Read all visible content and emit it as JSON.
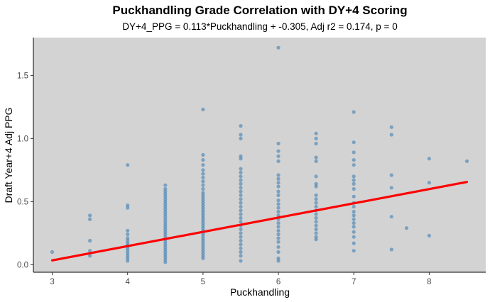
{
  "chart_data": {
    "type": "scatter",
    "title": "Puckhandling Grade Correlation with DY+4 Scoring",
    "subtitle": "DY+4_PPG = 0.113*Puckhandling + -0.305, Adj r2 = 0.174, p = 0",
    "xlabel": "Puckhandling",
    "ylabel": "Draft Year+4 Adj PPG",
    "xlim": [
      2.75,
      8.75
    ],
    "ylim": [
      -0.06,
      1.8
    ],
    "xticks": [
      "3",
      "4",
      "5",
      "6",
      "7",
      "8"
    ],
    "xtick_values": [
      3,
      4,
      5,
      6,
      7,
      8
    ],
    "yticks": [
      "0.0",
      "0.5",
      "1.0",
      "1.5"
    ],
    "ytick_values": [
      0,
      0.5,
      1.0,
      1.5
    ],
    "grid": false,
    "point_color": "#4682b4",
    "fit_color": "#ff0000",
    "panel_background": "#d3d3d3",
    "fit_line": {
      "slope": 0.113,
      "intercept": -0.305,
      "x_range": [
        3,
        8.5
      ]
    },
    "points": [
      [
        3,
        0.1
      ],
      [
        3.5,
        0.39
      ],
      [
        3.5,
        0.36
      ],
      [
        3.5,
        0.19
      ],
      [
        3.5,
        0.11
      ],
      [
        3.5,
        0.07
      ],
      [
        4,
        0.79
      ],
      [
        4,
        0.47
      ],
      [
        4,
        0.45
      ],
      [
        4,
        0.27
      ],
      [
        4,
        0.24
      ],
      [
        4,
        0.21
      ],
      [
        4,
        0.19
      ],
      [
        4,
        0.17
      ],
      [
        4,
        0.15
      ],
      [
        4,
        0.13
      ],
      [
        4,
        0.11
      ],
      [
        4,
        0.09
      ],
      [
        4,
        0.07
      ],
      [
        4,
        0.05
      ],
      [
        4,
        0.03
      ],
      [
        4.5,
        0.63
      ],
      [
        4.5,
        0.6
      ],
      [
        4.5,
        0.58
      ],
      [
        4.5,
        0.56
      ],
      [
        4.5,
        0.54
      ],
      [
        4.5,
        0.52
      ],
      [
        4.5,
        0.5
      ],
      [
        4.5,
        0.48
      ],
      [
        4.5,
        0.46
      ],
      [
        4.5,
        0.44
      ],
      [
        4.5,
        0.42
      ],
      [
        4.5,
        0.4
      ],
      [
        4.5,
        0.38
      ],
      [
        4.5,
        0.36
      ],
      [
        4.5,
        0.34
      ],
      [
        4.5,
        0.32
      ],
      [
        4.5,
        0.3
      ],
      [
        4.5,
        0.28
      ],
      [
        4.5,
        0.26
      ],
      [
        4.5,
        0.24
      ],
      [
        4.5,
        0.22
      ],
      [
        4.5,
        0.2
      ],
      [
        4.5,
        0.18
      ],
      [
        4.5,
        0.16
      ],
      [
        4.5,
        0.14
      ],
      [
        4.5,
        0.12
      ],
      [
        4.5,
        0.1
      ],
      [
        4.5,
        0.08
      ],
      [
        4.5,
        0.06
      ],
      [
        4.5,
        0.04
      ],
      [
        4.5,
        0.02
      ],
      [
        5,
        1.23
      ],
      [
        5,
        0.87
      ],
      [
        5,
        0.83
      ],
      [
        5,
        0.79
      ],
      [
        5,
        0.75
      ],
      [
        5,
        0.72
      ],
      [
        5,
        0.69
      ],
      [
        5,
        0.66
      ],
      [
        5,
        0.63
      ],
      [
        5,
        0.6
      ],
      [
        5,
        0.57
      ],
      [
        5,
        0.55
      ],
      [
        5,
        0.53
      ],
      [
        5,
        0.51
      ],
      [
        5,
        0.49
      ],
      [
        5,
        0.47
      ],
      [
        5,
        0.45
      ],
      [
        5,
        0.43
      ],
      [
        5,
        0.41
      ],
      [
        5,
        0.39
      ],
      [
        5,
        0.37
      ],
      [
        5,
        0.35
      ],
      [
        5,
        0.33
      ],
      [
        5,
        0.31
      ],
      [
        5,
        0.29
      ],
      [
        5,
        0.27
      ],
      [
        5,
        0.25
      ],
      [
        5,
        0.23
      ],
      [
        5,
        0.21
      ],
      [
        5,
        0.19
      ],
      [
        5,
        0.17
      ],
      [
        5,
        0.15
      ],
      [
        5,
        0.13
      ],
      [
        5,
        0.11
      ],
      [
        5,
        0.09
      ],
      [
        5,
        0.07
      ],
      [
        5,
        0.05
      ],
      [
        5.5,
        1.1
      ],
      [
        5.5,
        1.03
      ],
      [
        5.5,
        1.0
      ],
      [
        5.5,
        0.86
      ],
      [
        5.5,
        0.84
      ],
      [
        5.5,
        0.76
      ],
      [
        5.5,
        0.73
      ],
      [
        5.5,
        0.7
      ],
      [
        5.5,
        0.67
      ],
      [
        5.5,
        0.64
      ],
      [
        5.5,
        0.61
      ],
      [
        5.5,
        0.58
      ],
      [
        5.5,
        0.55
      ],
      [
        5.5,
        0.52
      ],
      [
        5.5,
        0.49
      ],
      [
        5.5,
        0.46
      ],
      [
        5.5,
        0.43
      ],
      [
        5.5,
        0.4
      ],
      [
        5.5,
        0.37
      ],
      [
        5.5,
        0.34
      ],
      [
        5.5,
        0.31
      ],
      [
        5.5,
        0.28
      ],
      [
        5.5,
        0.25
      ],
      [
        5.5,
        0.22
      ],
      [
        5.5,
        0.19
      ],
      [
        5.5,
        0.16
      ],
      [
        5.5,
        0.13
      ],
      [
        5.5,
        0.1
      ],
      [
        5.5,
        0.07
      ],
      [
        5.5,
        0.03
      ],
      [
        6,
        1.72
      ],
      [
        6,
        0.96
      ],
      [
        6,
        0.9
      ],
      [
        6,
        0.86
      ],
      [
        6,
        0.82
      ],
      [
        6,
        0.71
      ],
      [
        6,
        0.68
      ],
      [
        6,
        0.65
      ],
      [
        6,
        0.62
      ],
      [
        6,
        0.58
      ],
      [
        6,
        0.55
      ],
      [
        6,
        0.51
      ],
      [
        6,
        0.48
      ],
      [
        6,
        0.45
      ],
      [
        6,
        0.42
      ],
      [
        6,
        0.39
      ],
      [
        6,
        0.36
      ],
      [
        6,
        0.33
      ],
      [
        6,
        0.3
      ],
      [
        6,
        0.27
      ],
      [
        6,
        0.24
      ],
      [
        6,
        0.21
      ],
      [
        6,
        0.18
      ],
      [
        6,
        0.14
      ],
      [
        6,
        0.1
      ],
      [
        6,
        0.05
      ],
      [
        6,
        0.03
      ],
      [
        6.5,
        1.04
      ],
      [
        6.5,
        1.0
      ],
      [
        6.5,
        0.96
      ],
      [
        6.5,
        0.85
      ],
      [
        6.5,
        0.82
      ],
      [
        6.5,
        0.7
      ],
      [
        6.5,
        0.64
      ],
      [
        6.5,
        0.62
      ],
      [
        6.5,
        0.55
      ],
      [
        6.5,
        0.52
      ],
      [
        6.5,
        0.49
      ],
      [
        6.5,
        0.46
      ],
      [
        6.5,
        0.43
      ],
      [
        6.5,
        0.4
      ],
      [
        6.5,
        0.37
      ],
      [
        6.5,
        0.34
      ],
      [
        6.5,
        0.31
      ],
      [
        6.5,
        0.28
      ],
      [
        6.5,
        0.25
      ],
      [
        6.5,
        0.22
      ],
      [
        6.5,
        0.2
      ],
      [
        7,
        1.21
      ],
      [
        7,
        0.97
      ],
      [
        7,
        0.89
      ],
      [
        7,
        0.83
      ],
      [
        7,
        0.79
      ],
      [
        7,
        0.7
      ],
      [
        7,
        0.67
      ],
      [
        7,
        0.64
      ],
      [
        7,
        0.6
      ],
      [
        7,
        0.54
      ],
      [
        7,
        0.49
      ],
      [
        7,
        0.46
      ],
      [
        7,
        0.42
      ],
      [
        7,
        0.39
      ],
      [
        7,
        0.36
      ],
      [
        7,
        0.33
      ],
      [
        7,
        0.3
      ],
      [
        7,
        0.26
      ],
      [
        7,
        0.22
      ],
      [
        7,
        0.17
      ],
      [
        7,
        0.11
      ],
      [
        7.5,
        1.09
      ],
      [
        7.5,
        1.03
      ],
      [
        7.5,
        0.71
      ],
      [
        7.5,
        0.61
      ],
      [
        7.5,
        0.38
      ],
      [
        7.5,
        0.12
      ],
      [
        7.7,
        0.29
      ],
      [
        8,
        0.84
      ],
      [
        8,
        0.65
      ],
      [
        8,
        0.23
      ],
      [
        8.5,
        0.82
      ]
    ]
  }
}
